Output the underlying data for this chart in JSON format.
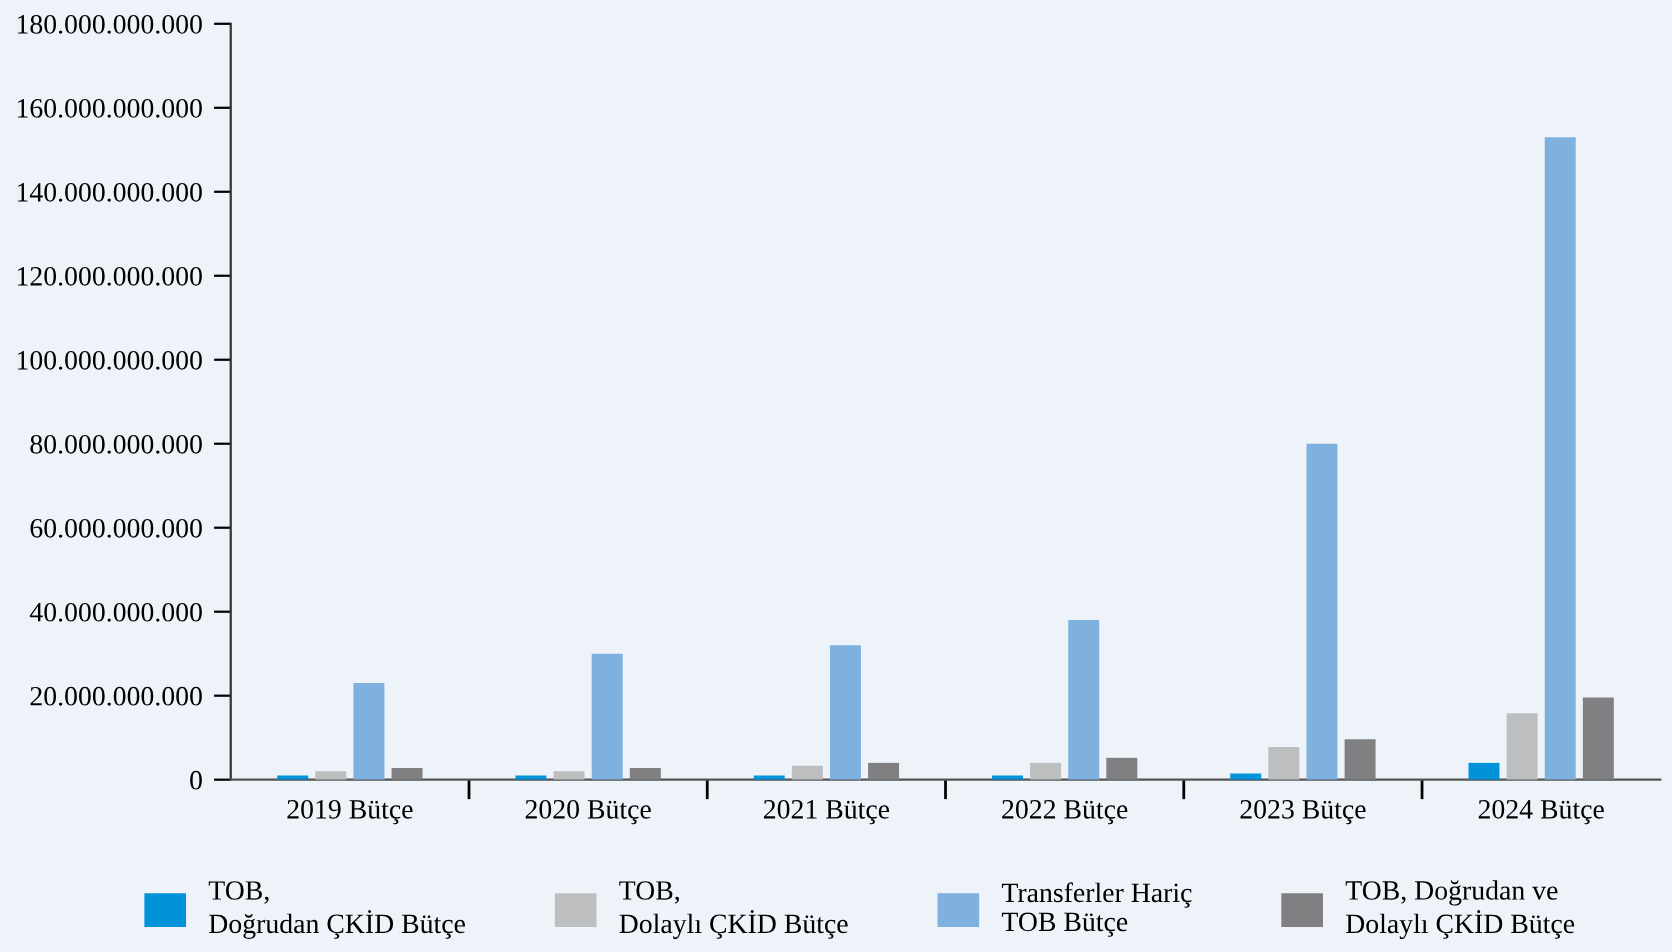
{
  "chart_data": {
    "type": "bar",
    "categories": [
      "2019 Bütçe",
      "2020 Bütçe",
      "2021 Bütçe",
      "2022 Bütçe",
      "2023 Bütçe",
      "2024 Bütçe"
    ],
    "series": [
      {
        "name": "TOB,\nDoğrudan ÇKİD Bütçe",
        "color": "#0093d9",
        "values": [
          1000000000,
          1000000000,
          1000000000,
          1000000000,
          1500000000,
          4000000000
        ]
      },
      {
        "name": "TOB,\nDolaylı ÇKİD Bütçe",
        "color": "#bcbec0",
        "values": [
          2000000000,
          2000000000,
          3300000000,
          4000000000,
          7800000000,
          15800000000
        ]
      },
      {
        "name": "Transferler Hariç\nTOB Bütçe",
        "color": "#7fb1df",
        "values": [
          23000000000,
          30000000000,
          32000000000,
          38000000000,
          80000000000,
          153000000000
        ]
      },
      {
        "name": "TOB, Doğrudan ve\nDolaylı ÇKİD Bütçe",
        "color": "#808083",
        "values": [
          2800000000,
          2800000000,
          4000000000,
          5200000000,
          9600000000,
          19600000000
        ]
      }
    ],
    "ylim": [
      0,
      180000000000
    ],
    "yticks": [
      {
        "value": 0,
        "label": "0"
      },
      {
        "value": 20000000000,
        "label": "20.000.000.000"
      },
      {
        "value": 40000000000,
        "label": "40.000.000.000"
      },
      {
        "value": 60000000000,
        "label": "60.000.000.000"
      },
      {
        "value": 80000000000,
        "label": "80.000.000.000"
      },
      {
        "value": 100000000000,
        "label": "100.000.000.000"
      },
      {
        "value": 120000000000,
        "label": "120.000.000.000"
      },
      {
        "value": 140000000000,
        "label": "140.000.000.000"
      },
      {
        "value": 160000000000,
        "label": "160.000.000.000"
      },
      {
        "value": 180000000000,
        "label": "180.000.000.000"
      }
    ],
    "grid": false,
    "legend": "bottom"
  }
}
